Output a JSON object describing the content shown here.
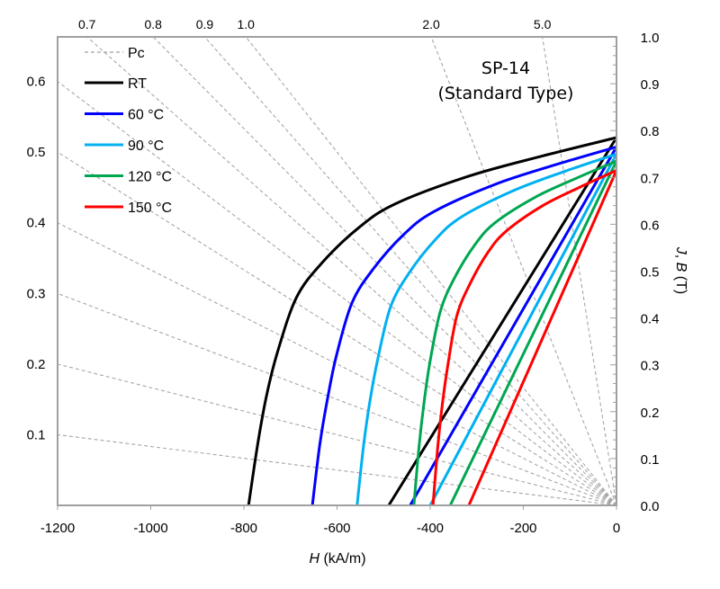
{
  "chart_data": {
    "type": "line",
    "title": "SP-14",
    "subtitle": "(Standard Type)",
    "xlabel": {
      "italic": "H",
      "rest": " (kA/m)"
    },
    "ylabel": {
      "p1": "J",
      "p2": ", ",
      "p3": "B",
      "p4": " (T)"
    },
    "xlim": [
      -1200,
      0
    ],
    "ylim": [
      0,
      1.0
    ],
    "x_ticks": [
      -1200,
      -1000,
      -800,
      -600,
      -400,
      -200,
      0
    ],
    "y_ticks": [
      "0.0",
      "0.1",
      "0.2",
      "0.3",
      "0.4",
      "0.5",
      "0.6",
      "0.7",
      "0.8",
      "0.9",
      "1.0"
    ],
    "legend_position": "top-left",
    "pc_legend": "Pc",
    "pc_lines": [
      "0.1",
      "0.2",
      "0.3",
      "0.4",
      "0.5",
      "0.6",
      "0.7",
      "0.8",
      "0.9",
      "1.0",
      "2.0",
      "5.0"
    ],
    "series": [
      {
        "name": "RT",
        "color": "#000000",
        "Br": 0.785,
        "HcB": -489,
        "J": [
          [
            0,
            0.785
          ],
          [
            -158,
            0.746
          ],
          [
            -316,
            0.703
          ],
          [
            -474,
            0.644
          ],
          [
            -553,
            0.593
          ],
          [
            -632,
            0.518
          ],
          [
            -687,
            0.444
          ],
          [
            -727,
            0.33
          ],
          [
            -751,
            0.236
          ],
          [
            -770,
            0.133
          ],
          [
            -790,
            0
          ]
        ]
      },
      {
        "name": "60 °C",
        "color": "#0000ff",
        "Br": 0.765,
        "HcB": -443,
        "J": [
          [
            0,
            0.765
          ],
          [
            -131,
            0.727
          ],
          [
            -261,
            0.685
          ],
          [
            -392,
            0.627
          ],
          [
            -457,
            0.578
          ],
          [
            -522,
            0.505
          ],
          [
            -568,
            0.432
          ],
          [
            -601,
            0.321
          ],
          [
            -620,
            0.23
          ],
          [
            -637,
            0.13
          ],
          [
            -653,
            0
          ]
        ]
      },
      {
        "name": "90 °C",
        "color": "#00b0f0",
        "Br": 0.75,
        "HcB": -400,
        "J": [
          [
            0,
            0.75
          ],
          [
            -111,
            0.713
          ],
          [
            -223,
            0.671
          ],
          [
            -334,
            0.615
          ],
          [
            -390,
            0.566
          ],
          [
            -446,
            0.495
          ],
          [
            -485,
            0.424
          ],
          [
            -512,
            0.315
          ],
          [
            -529,
            0.225
          ],
          [
            -543,
            0.128
          ],
          [
            -557,
            0
          ]
        ]
      },
      {
        "name": "120 °C",
        "color": "#00a650",
        "Br": 0.735,
        "HcB": -357,
        "J": [
          [
            0,
            0.735
          ],
          [
            -87,
            0.698
          ],
          [
            -174,
            0.658
          ],
          [
            -261,
            0.603
          ],
          [
            -305,
            0.555
          ],
          [
            -348,
            0.485
          ],
          [
            -378,
            0.415
          ],
          [
            -400,
            0.309
          ],
          [
            -413,
            0.221
          ],
          [
            -424,
            0.125
          ],
          [
            -435,
            0
          ]
        ]
      },
      {
        "name": "150 °C",
        "color": "#ff0000",
        "Br": 0.715,
        "HcB": -317,
        "J": [
          [
            0,
            0.715
          ],
          [
            -79,
            0.679
          ],
          [
            -158,
            0.64
          ],
          [
            -236,
            0.586
          ],
          [
            -276,
            0.54
          ],
          [
            -315,
            0.472
          ],
          [
            -343,
            0.404
          ],
          [
            -362,
            0.3
          ],
          [
            -374,
            0.215
          ],
          [
            -384,
            0.122
          ],
          [
            -394,
            0
          ]
        ]
      }
    ]
  }
}
